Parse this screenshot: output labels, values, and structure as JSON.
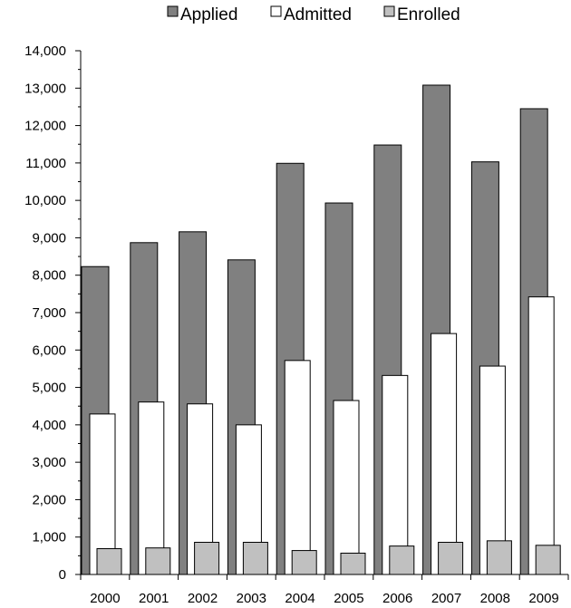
{
  "chart_data": {
    "type": "bar",
    "categories": [
      "2000",
      "2001",
      "2002",
      "2003",
      "2004",
      "2005",
      "2006",
      "2007",
      "2008",
      "2009"
    ],
    "series": [
      {
        "name": "Applied",
        "color": "#808080",
        "values": [
          8230,
          8870,
          9160,
          8410,
          10990,
          9930,
          11480,
          13080,
          11030,
          12450
        ]
      },
      {
        "name": "Admitted",
        "color": "#ffffff",
        "values": [
          4290,
          4610,
          4560,
          4000,
          5720,
          4650,
          5320,
          6440,
          5570,
          7420
        ]
      },
      {
        "name": "Enrolled",
        "color": "#c0c0c0",
        "values": [
          690,
          710,
          860,
          860,
          640,
          570,
          760,
          860,
          900,
          780
        ]
      }
    ],
    "ylim": [
      0,
      14000
    ],
    "yticks": [
      "0",
      "1,000",
      "2,000",
      "3,000",
      "4,000",
      "5,000",
      "6,000",
      "7,000",
      "8,000",
      "9,000",
      "10,000",
      "11,000",
      "12,000",
      "13,000",
      "14,000"
    ],
    "title": "",
    "xlabel": "",
    "ylabel": "",
    "legend_position": "top-center",
    "grid": false,
    "layout": "overlapping-nested-bars"
  }
}
